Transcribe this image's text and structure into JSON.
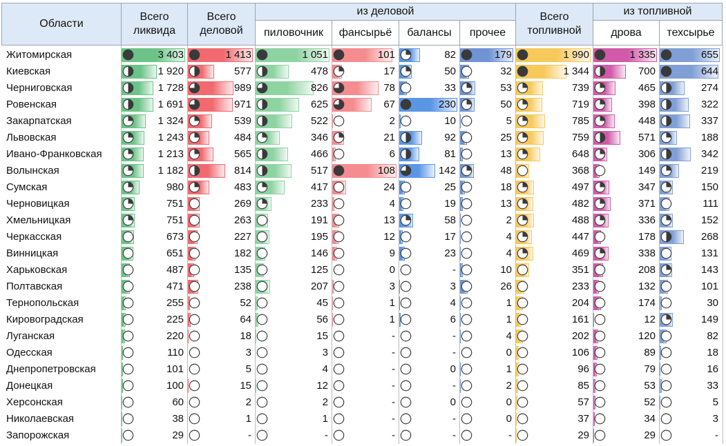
{
  "header": {
    "regions": "Области",
    "total_liquid": "Всего ликвида",
    "total_business": "Всего деловой",
    "of_business": "из деловой",
    "sawlogs": "пиловочник",
    "veneer": "фансырьё",
    "pulpwood": "балансы",
    "other": "прочее",
    "total_fuel": "Всего топливной",
    "of_fuel": "из топливной",
    "firewood": "дрова",
    "techwood": "техсырье"
  },
  "colors": {
    "header_bg": "#dde9f6",
    "total_liquid": "#6cc387",
    "total_business": "#f06a6f",
    "sawlogs": "#8ed3a2",
    "veneer": "#f58c8f",
    "pulpwood": "#5b96e4",
    "other": "#6f93d3",
    "total_fuel": "#f7c95a",
    "firewood": "#d15aa9",
    "techwood": "#7f9fd6"
  },
  "columns": [
    "total_liquid",
    "total_business",
    "sawlogs",
    "veneer",
    "pulpwood",
    "other",
    "total_fuel",
    "firewood",
    "techwood"
  ],
  "column_max": {
    "total_liquid": 3403,
    "total_business": 1413,
    "sawlogs": 1051,
    "veneer": 108,
    "pulpwood": 230,
    "other": 179,
    "total_fuel": 1990,
    "firewood": 1335,
    "techwood": 655
  },
  "rows": [
    {
      "region": "Житомирская",
      "values": [
        "3 403",
        "1 413",
        "1 051",
        "101",
        "82",
        "179",
        "1 990",
        "1 335",
        "655"
      ],
      "fractions": [
        1.0,
        1.0,
        1.0,
        0.94,
        0.36,
        1.0,
        1.0,
        1.0,
        1.0
      ],
      "icons": [
        4,
        4,
        4,
        4,
        1,
        4,
        4,
        4,
        4
      ]
    },
    {
      "region": "Киевская",
      "values": [
        "1 920",
        "577",
        "478",
        "17",
        "50",
        "32",
        "1 344",
        "700",
        "644"
      ],
      "fractions": [
        0.56,
        0.41,
        0.45,
        0.16,
        0.22,
        0.18,
        0.68,
        0.52,
        0.98
      ],
      "icons": [
        2,
        2,
        2,
        1,
        1,
        0,
        4,
        2,
        4
      ]
    },
    {
      "region": "Черниговская",
      "values": [
        "1 728",
        "989",
        "826",
        "78",
        "33",
        "53",
        "739",
        "465",
        "274"
      ],
      "fractions": [
        0.51,
        0.7,
        0.79,
        0.72,
        0.14,
        0.3,
        0.37,
        0.35,
        0.42
      ],
      "icons": [
        2,
        3,
        3,
        3,
        0,
        1,
        1,
        1,
        2
      ]
    },
    {
      "region": "Ровенская",
      "values": [
        "1 691",
        "971",
        "625",
        "67",
        "230",
        "50",
        "719",
        "398",
        "322"
      ],
      "fractions": [
        0.5,
        0.69,
        0.59,
        0.62,
        1.0,
        0.28,
        0.36,
        0.3,
        0.49
      ],
      "icons": [
        2,
        3,
        2,
        3,
        4,
        1,
        1,
        1,
        2
      ]
    },
    {
      "region": "Закарпатская",
      "values": [
        "1 324",
        "539",
        "522",
        "2",
        "10",
        "5",
        "785",
        "448",
        "337"
      ],
      "fractions": [
        0.39,
        0.38,
        0.5,
        0.02,
        0.04,
        0.03,
        0.39,
        0.34,
        0.51
      ],
      "icons": [
        1,
        1,
        2,
        0,
        0,
        0,
        1,
        1,
        2
      ]
    },
    {
      "region": "Львовская",
      "values": [
        "1 243",
        "484",
        "346",
        "21",
        "92",
        "25",
        "759",
        "571",
        "188"
      ],
      "fractions": [
        0.37,
        0.34,
        0.33,
        0.19,
        0.4,
        0.14,
        0.38,
        0.43,
        0.29
      ],
      "icons": [
        1,
        1,
        1,
        1,
        2,
        0,
        1,
        2,
        1
      ]
    },
    {
      "region": "Ивано-Франковская",
      "values": [
        "1 213",
        "565",
        "466",
        "6",
        "81",
        "13",
        "648",
        "306",
        "342"
      ],
      "fractions": [
        0.36,
        0.4,
        0.44,
        0.06,
        0.35,
        0.07,
        0.33,
        0.23,
        0.52
      ],
      "icons": [
        1,
        1,
        2,
        0,
        2,
        0,
        1,
        1,
        2
      ]
    },
    {
      "region": "Волынская",
      "values": [
        "1 182",
        "814",
        "517",
        "108",
        "142",
        "48",
        "368",
        "149",
        "219"
      ],
      "fractions": [
        0.35,
        0.58,
        0.49,
        1.0,
        0.62,
        0.27,
        0.18,
        0.11,
        0.33
      ],
      "icons": [
        1,
        2,
        2,
        4,
        3,
        1,
        0,
        0,
        1
      ]
    },
    {
      "region": "Сумская",
      "values": [
        "980",
        "483",
        "417",
        "24",
        "25",
        "18",
        "497",
        "347",
        "150"
      ],
      "fractions": [
        0.29,
        0.34,
        0.4,
        0.22,
        0.11,
        0.1,
        0.25,
        0.26,
        0.23
      ],
      "icons": [
        1,
        1,
        1,
        0,
        0,
        0,
        1,
        1,
        1
      ]
    },
    {
      "region": "Черновицкая",
      "values": [
        "751",
        "269",
        "233",
        "4",
        "19",
        "13",
        "482",
        "371",
        "111"
      ],
      "fractions": [
        0.22,
        0.19,
        0.22,
        0.04,
        0.08,
        0.07,
        0.24,
        0.28,
        0.17
      ],
      "icons": [
        1,
        0,
        1,
        0,
        0,
        0,
        1,
        1,
        0
      ]
    },
    {
      "region": "Хмельницкая",
      "values": [
        "751",
        "263",
        "191",
        "13",
        "58",
        "2",
        "488",
        "336",
        "152"
      ],
      "fractions": [
        0.22,
        0.19,
        0.18,
        0.12,
        0.25,
        0.01,
        0.25,
        0.25,
        0.23
      ],
      "icons": [
        1,
        0,
        0,
        0,
        1,
        0,
        1,
        1,
        1
      ]
    },
    {
      "region": "Черкасская",
      "values": [
        "673",
        "227",
        "195",
        "12",
        "17",
        "4",
        "447",
        "178",
        "268"
      ],
      "fractions": [
        0.2,
        0.16,
        0.19,
        0.11,
        0.07,
        0.02,
        0.22,
        0.13,
        0.41
      ],
      "icons": [
        0,
        0,
        0,
        0,
        0,
        0,
        1,
        0,
        2
      ]
    },
    {
      "region": "Винницкая",
      "values": [
        "651",
        "182",
        "146",
        "9",
        "23",
        "4",
        "469",
        "338",
        "131"
      ],
      "fractions": [
        0.19,
        0.13,
        0.14,
        0.08,
        0.1,
        0.02,
        0.24,
        0.25,
        0.2
      ],
      "icons": [
        0,
        0,
        0,
        0,
        0,
        0,
        1,
        1,
        0
      ]
    },
    {
      "region": "Харьковская",
      "values": [
        "487",
        "135",
        "125",
        "0",
        "-",
        "10",
        "351",
        "208",
        "143"
      ],
      "fractions": [
        0.14,
        0.1,
        0.12,
        0.0,
        0.0,
        0.06,
        0.18,
        0.16,
        0.22
      ],
      "icons": [
        0,
        0,
        0,
        0,
        0,
        0,
        0,
        0,
        1
      ]
    },
    {
      "region": "Полтавская",
      "values": [
        "471",
        "238",
        "207",
        "3",
        "3",
        "26",
        "233",
        "132",
        "101"
      ],
      "fractions": [
        0.14,
        0.17,
        0.2,
        0.03,
        0.01,
        0.15,
        0.12,
        0.1,
        0.15
      ],
      "icons": [
        0,
        0,
        0,
        0,
        0,
        0,
        0,
        0,
        0
      ]
    },
    {
      "region": "Тернопольская",
      "values": [
        "255",
        "52",
        "45",
        "1",
        "4",
        "1",
        "204",
        "174",
        "30"
      ],
      "fractions": [
        0.07,
        0.04,
        0.04,
        0.01,
        0.02,
        0.01,
        0.1,
        0.13,
        0.05
      ],
      "icons": [
        0,
        0,
        0,
        0,
        0,
        0,
        0,
        0,
        0
      ]
    },
    {
      "region": "Кировоградская",
      "values": [
        "225",
        "64",
        "56",
        "1",
        "6",
        "1",
        "161",
        "12",
        "149"
      ],
      "fractions": [
        0.07,
        0.05,
        0.05,
        0.01,
        0.03,
        0.01,
        0.08,
        0.01,
        0.23
      ],
      "icons": [
        0,
        0,
        0,
        0,
        0,
        0,
        0,
        0,
        1
      ]
    },
    {
      "region": "Луганская",
      "values": [
        "220",
        "18",
        "15",
        "-",
        "-",
        "4",
        "202",
        "120",
        "82"
      ],
      "fractions": [
        0.06,
        0.01,
        0.01,
        0.0,
        0.0,
        0.02,
        0.1,
        0.09,
        0.13
      ],
      "icons": [
        0,
        0,
        0,
        0,
        0,
        0,
        0,
        0,
        0
      ]
    },
    {
      "region": "Одесская",
      "values": [
        "110",
        "3",
        "3",
        "-",
        "-",
        "0",
        "106",
        "89",
        "18"
      ],
      "fractions": [
        0.03,
        0.0,
        0.0,
        0.0,
        0.0,
        0.0,
        0.05,
        0.07,
        0.03
      ],
      "icons": [
        0,
        0,
        0,
        0,
        0,
        0,
        0,
        0,
        0
      ]
    },
    {
      "region": "Днепропетровская",
      "values": [
        "101",
        "5",
        "4",
        "-",
        "0",
        "1",
        "96",
        "79",
        "16"
      ],
      "fractions": [
        0.03,
        0.0,
        0.0,
        0.0,
        0.0,
        0.01,
        0.05,
        0.06,
        0.02
      ],
      "icons": [
        0,
        0,
        0,
        0,
        0,
        0,
        0,
        0,
        0
      ]
    },
    {
      "region": "Донецкая",
      "values": [
        "100",
        "15",
        "12",
        "-",
        "-",
        "2",
        "85",
        "53",
        "33"
      ],
      "fractions": [
        0.03,
        0.01,
        0.01,
        0.0,
        0.0,
        0.01,
        0.04,
        0.04,
        0.05
      ],
      "icons": [
        0,
        0,
        0,
        0,
        0,
        0,
        0,
        0,
        0
      ]
    },
    {
      "region": "Херсонская",
      "values": [
        "60",
        "2",
        "2",
        "-",
        "0",
        "0",
        "57",
        "52",
        "5"
      ],
      "fractions": [
        0.02,
        0.0,
        0.0,
        0.0,
        0.0,
        0.0,
        0.03,
        0.04,
        0.01
      ],
      "icons": [
        0,
        0,
        0,
        0,
        0,
        0,
        0,
        0,
        0
      ]
    },
    {
      "region": "Николаевская",
      "values": [
        "38",
        "1",
        "1",
        "-",
        "-",
        "0",
        "37",
        "34",
        "3"
      ],
      "fractions": [
        0.01,
        0.0,
        0.0,
        0.0,
        0.0,
        0.0,
        0.02,
        0.03,
        0.0
      ],
      "icons": [
        0,
        0,
        0,
        0,
        0,
        0,
        0,
        0,
        0
      ]
    },
    {
      "region": "Запорожская",
      "values": [
        "29",
        "-",
        "-",
        "-",
        "-",
        "-",
        "29",
        "29",
        "-"
      ],
      "fractions": [
        0.01,
        0.0,
        0.0,
        0.0,
        0.0,
        0.0,
        0.01,
        0.02,
        0.0
      ],
      "icons": [
        0,
        0,
        0,
        0,
        0,
        0,
        0,
        0,
        0
      ]
    }
  ]
}
